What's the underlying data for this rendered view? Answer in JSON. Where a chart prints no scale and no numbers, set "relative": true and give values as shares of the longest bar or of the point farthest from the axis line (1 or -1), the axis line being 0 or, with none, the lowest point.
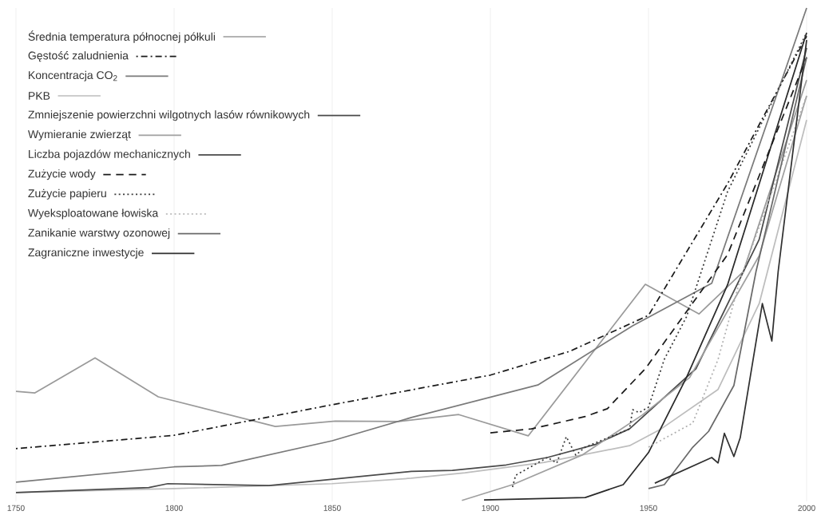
{
  "chart_data": {
    "type": "line",
    "relative": true,
    "xlim": [
      1750,
      2000
    ],
    "xticks": [
      1750,
      1800,
      1850,
      1900,
      1950,
      2000
    ],
    "grid": "x",
    "legend": "top left",
    "series": [
      {
        "name": "Średnia temperatura północnej półkuli",
        "color": "#9a9a9a",
        "line_style": "solid",
        "x": [
          1750,
          1756,
          1775,
          1795,
          1832,
          1851,
          1871,
          1890,
          1912,
          1949,
          1966,
          1980,
          2000
        ],
        "values": [
          0.223,
          0.22,
          0.291,
          0.212,
          0.152,
          0.163,
          0.162,
          0.176,
          0.133,
          0.44,
          0.38,
          0.466,
          0.854
        ]
      },
      {
        "name": "Gęstość zaludnienia",
        "color": "#1a1a1a",
        "line_style": "dashdot",
        "x": [
          1750,
          1800,
          1850,
          1900,
          1925,
          1950,
          1975,
          2000
        ],
        "values": [
          0.107,
          0.134,
          0.196,
          0.256,
          0.304,
          0.377,
          0.644,
          0.943
        ]
      },
      {
        "name": "Koncentracja CO$_{2}$",
        "color": "#7a7a7a",
        "line_style": "solid",
        "x": [
          1750,
          1800,
          1815,
          1850,
          1875,
          1915,
          1945,
          1970,
          2000
        ],
        "values": [
          0.039,
          0.07,
          0.073,
          0.123,
          0.17,
          0.236,
          0.356,
          0.442,
          1.0
        ]
      },
      {
        "name": "PKB",
        "color": "#bdbdbd",
        "line_style": "solid",
        "x": [
          1750,
          1800,
          1850,
          1875,
          1892,
          1917,
          1944,
          1954,
          1972,
          1985,
          2000
        ],
        "values": [
          0.018,
          0.026,
          0.036,
          0.047,
          0.058,
          0.079,
          0.113,
          0.147,
          0.227,
          0.401,
          0.773
        ]
      },
      {
        "name": "Zmniejszenie powierzchni wilgotnych lasów równikowych",
        "color": "#4a4a4a",
        "line_style": "solid",
        "x": [
          1750,
          1792,
          1798,
          1830,
          1875,
          1888,
          1905,
          1918,
          1933,
          1944,
          1965,
          1985,
          2000
        ],
        "values": [
          0.018,
          0.028,
          0.036,
          0.032,
          0.061,
          0.063,
          0.074,
          0.089,
          0.115,
          0.147,
          0.269,
          0.531,
          0.919
        ]
      },
      {
        "name": "Wymieranie zwierząt",
        "color": "#a0a0a0",
        "line_style": "solid",
        "x": [
          1891,
          1907,
          1929,
          1948,
          1963,
          1985,
          2000
        ],
        "values": [
          0.002,
          0.034,
          0.094,
          0.175,
          0.251,
          0.498,
          0.822
        ]
      },
      {
        "name": "Liczba pojazdów mechanicznych",
        "color": "#2a2a2a",
        "line_style": "solid",
        "x": [
          1898,
          1930,
          1942,
          1950,
          1962,
          1975,
          2000
        ],
        "values": [
          0.003,
          0.008,
          0.034,
          0.099,
          0.251,
          0.439,
          0.95
        ]
      },
      {
        "name": "Zużycie wody",
        "color": "#1a1a1a",
        "line_style": "dashed",
        "x": [
          1900,
          1913,
          1930,
          1937,
          1949,
          1975,
          2000
        ],
        "values": [
          0.139,
          0.147,
          0.172,
          0.188,
          0.269,
          0.5,
          0.9
        ]
      },
      {
        "name": "Zużycie papieru",
        "color": "#3a3a3a",
        "line_style": "dotted",
        "x": [
          1907,
          1908,
          1918,
          1921,
          1924,
          1927,
          1930,
          1944,
          1945,
          1947,
          1950,
          1955,
          1962,
          1975,
          2000
        ],
        "values": [
          0.029,
          0.053,
          0.089,
          0.078,
          0.131,
          0.094,
          0.11,
          0.147,
          0.186,
          0.18,
          0.191,
          0.288,
          0.374,
          0.628,
          0.95
        ]
      },
      {
        "name": "Wyeksploatowane łowiska",
        "color": "#b0b0b0",
        "line_style": "dotted",
        "x": [
          1950,
          1964,
          1972,
          1979,
          2000
        ],
        "values": [
          0.11,
          0.159,
          0.288,
          0.45,
          0.822
        ]
      },
      {
        "name": "Zanikanie warstwy ozonowej",
        "color": "#6a6a6a",
        "line_style": "solid",
        "x": [
          1950,
          1955,
          1964,
          1969,
          1977,
          1984,
          2000
        ],
        "values": [
          0.026,
          0.034,
          0.11,
          0.142,
          0.235,
          0.466,
          0.9
        ]
      },
      {
        "name": "Zagraniczne inwestycje",
        "color": "#303030",
        "line_style": "solid",
        "x": [
          1952,
          1970,
          1972,
          1974,
          1977,
          1979,
          1986,
          1989,
          1991,
          2000
        ],
        "values": [
          0.037,
          0.089,
          0.078,
          0.138,
          0.091,
          0.129,
          0.401,
          0.325,
          0.466,
          0.935
        ]
      }
    ]
  }
}
